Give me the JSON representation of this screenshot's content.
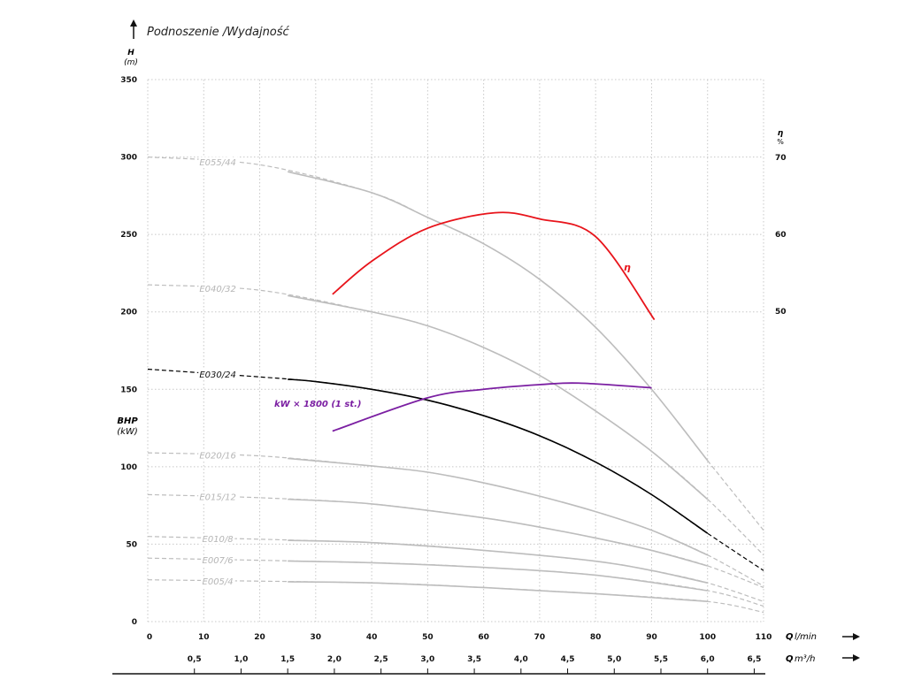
{
  "chart_data": {
    "type": "line",
    "title": "Podnoszenie /Wydajność",
    "ylabel": "H",
    "yunit": "(m)",
    "y2label": "η",
    "y2unit": "%",
    "bhp_label": "BHP",
    "bhp_unit": "(kW)",
    "xlabel": "Q",
    "xunit": "l/min",
    "x2label": "Q",
    "x2unit": "m³/h",
    "xlim": [
      0,
      110
    ],
    "ylim": [
      0,
      350
    ],
    "y2lim": [
      50,
      70
    ],
    "grid": true,
    "x_ticks": [
      0,
      10,
      20,
      30,
      40,
      50,
      60,
      70,
      80,
      90,
      100,
      110
    ],
    "y_ticks": [
      0,
      50,
      100,
      150,
      200,
      250,
      300,
      350
    ],
    "y2_ticks": [
      50,
      60,
      70
    ],
    "x2_ticks": [
      "0,5",
      "1,0",
      "1,5",
      "2,0",
      "2,5",
      "3,0",
      "3,5",
      "4,0",
      "4,5",
      "5,0",
      "5,5",
      "6,0",
      "6,5"
    ],
    "x2_values": [
      0.5,
      1.0,
      1.5,
      2.0,
      2.5,
      3.0,
      3.5,
      4.0,
      4.5,
      5.0,
      5.5,
      6.0,
      6.5
    ],
    "solid_range": [
      25,
      100
    ],
    "series": [
      {
        "name": "E055/44",
        "color": "#bdbdbd",
        "x": [
          0,
          20,
          40,
          50,
          60,
          70,
          80,
          90,
          100,
          110
        ],
        "y": [
          300,
          295,
          277,
          261,
          244,
          221,
          190,
          150,
          104,
          59
        ]
      },
      {
        "name": "E040/32",
        "color": "#bdbdbd",
        "x": [
          0,
          20,
          40,
          50,
          60,
          70,
          80,
          90,
          100,
          110
        ],
        "y": [
          217.5,
          214,
          200,
          191,
          177,
          159,
          136,
          110,
          79,
          43
        ]
      },
      {
        "name": "E030/24",
        "color": "#000000",
        "x": [
          0,
          20,
          30,
          40,
          50,
          60,
          70,
          80,
          90,
          100,
          110
        ],
        "y": [
          163,
          158,
          155,
          150,
          143,
          133,
          120,
          103,
          82,
          57,
          33
        ]
      },
      {
        "name": "E020/16",
        "color": "#bdbdbd",
        "x": [
          0,
          20,
          40,
          50,
          60,
          70,
          80,
          90,
          100,
          110
        ],
        "y": [
          109,
          107,
          100.5,
          96.5,
          89.6,
          81,
          71,
          59,
          43,
          23
        ]
      },
      {
        "name": "E015/12",
        "color": "#bdbdbd",
        "x": [
          0,
          20,
          40,
          60,
          70,
          80,
          90,
          100,
          110
        ],
        "y": [
          82,
          80,
          76,
          67,
          61,
          54,
          46,
          36,
          22
        ]
      },
      {
        "name": "E010/8",
        "color": "#bdbdbd",
        "x": [
          0,
          40,
          60,
          80,
          90,
          100,
          110
        ],
        "y": [
          55,
          51,
          46,
          39,
          33,
          25,
          13
        ]
      },
      {
        "name": "E007/6",
        "color": "#bdbdbd",
        "x": [
          0,
          40,
          60,
          80,
          100,
          110
        ],
        "y": [
          41,
          38,
          35,
          30,
          20,
          10
        ]
      },
      {
        "name": "E005/4",
        "color": "#bdbdbd",
        "x": [
          0,
          40,
          60,
          80,
          100,
          110
        ],
        "y": [
          27,
          25,
          22,
          18,
          13,
          6
        ]
      }
    ],
    "efficiency": {
      "name": "η",
      "color": "#e8141b",
      "x": [
        33,
        40,
        50,
        62,
        70,
        80,
        90.5
      ],
      "y": [
        52.2,
        56.5,
        60.8,
        62.8,
        62,
        59.7,
        48.9
      ]
    },
    "power": {
      "name": "kW × 1800 (1 st.)",
      "color": "#7b1fa2",
      "x": [
        33,
        50,
        60,
        70,
        77,
        90
      ],
      "y": [
        123,
        144.5,
        150,
        153,
        154,
        151
      ]
    }
  }
}
